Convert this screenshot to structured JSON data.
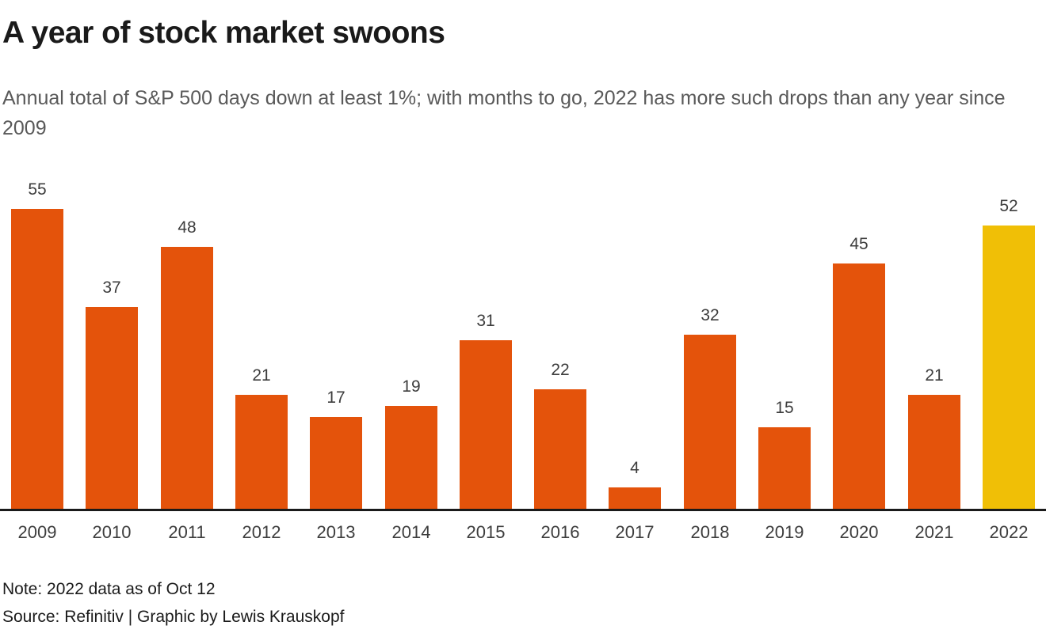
{
  "header": {
    "title": "A year of stock market swoons",
    "subtitle": "Annual total of S&P 500 days down at least 1%; with months to go, 2022 has more such drops than any year since 2009"
  },
  "chart_data": {
    "type": "bar",
    "categories": [
      "2009",
      "2010",
      "2011",
      "2012",
      "2013",
      "2014",
      "2015",
      "2016",
      "2017",
      "2018",
      "2019",
      "2020",
      "2021",
      "2022"
    ],
    "values": [
      55,
      37,
      48,
      21,
      17,
      19,
      31,
      22,
      4,
      32,
      15,
      45,
      21,
      52
    ],
    "title": "A year of stock market swoons",
    "xlabel": "",
    "ylabel": "",
    "ylim": [
      0,
      57
    ],
    "grid": false,
    "legend": false,
    "value_labels_shown": true,
    "bar_color": "#e4530b",
    "highlight_category": "2022",
    "highlight_color": "#f0bf06",
    "axis_line_color": "#1a1a1a",
    "label_color": "#3d3d3d"
  },
  "footer": {
    "note": "Note: 2022 data as of Oct 12",
    "source": "Source: Refinitiv | Graphic by Lewis Krauskopf"
  }
}
